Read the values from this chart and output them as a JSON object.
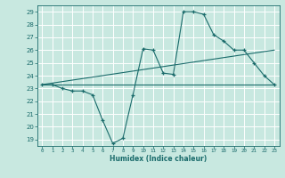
{
  "title": "",
  "xlabel": "Humidex (Indice chaleur)",
  "bg_color": "#c8e8e0",
  "grid_color": "#ffffff",
  "line_color": "#1a6b6b",
  "xlim": [
    -0.5,
    23.5
  ],
  "ylim": [
    18.5,
    29.5
  ],
  "yticks": [
    19,
    20,
    21,
    22,
    23,
    24,
    25,
    26,
    27,
    28,
    29
  ],
  "xticks": [
    0,
    1,
    2,
    3,
    4,
    5,
    6,
    7,
    8,
    9,
    10,
    11,
    12,
    13,
    14,
    15,
    16,
    17,
    18,
    19,
    20,
    21,
    22,
    23
  ],
  "line1_x": [
    0,
    1,
    2,
    3,
    4,
    5,
    6,
    7,
    8,
    9,
    10,
    11,
    12,
    13,
    14,
    15,
    16,
    17,
    18,
    19,
    20,
    21,
    22,
    23
  ],
  "line1_y": [
    23.3,
    23.3,
    23.0,
    22.8,
    22.8,
    22.5,
    20.5,
    18.7,
    19.1,
    22.5,
    26.1,
    26.0,
    24.2,
    24.1,
    29.0,
    29.0,
    28.8,
    27.2,
    26.7,
    26.0,
    26.0,
    25.0,
    24.0,
    23.3
  ],
  "line2_x": [
    0,
    23
  ],
  "line2_y": [
    23.3,
    23.3
  ],
  "line3_x": [
    0,
    23
  ],
  "line3_y": [
    23.3,
    26.0
  ]
}
